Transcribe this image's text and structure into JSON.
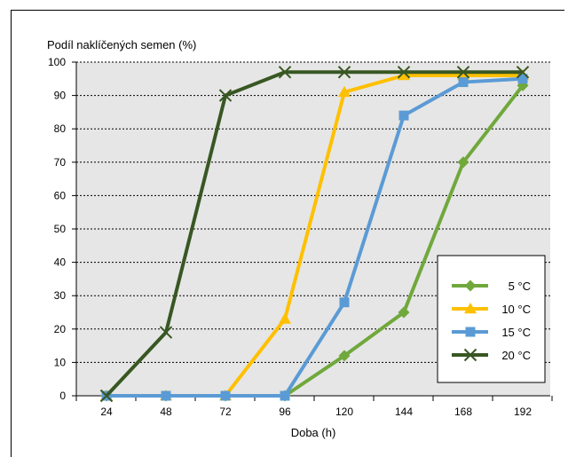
{
  "chart_data": {
    "type": "line",
    "ylabel": "Podíl naklíčených semen (%)",
    "xlabel": "Doba (h)",
    "x": [
      24,
      48,
      72,
      96,
      120,
      144,
      168,
      192
    ],
    "ylim": [
      0,
      100
    ],
    "yticks": [
      0,
      10,
      20,
      30,
      40,
      50,
      60,
      70,
      80,
      90,
      100
    ],
    "grid": "horizontal dashed",
    "legend_position": "lower-right",
    "series": [
      {
        "name": "5 °C",
        "color": "#70a83c",
        "marker": "diamond",
        "values": [
          0,
          0,
          0,
          0,
          12,
          25,
          70,
          93
        ]
      },
      {
        "name": "10 °C",
        "color": "#ffc000",
        "marker": "triangle",
        "values": [
          0,
          0,
          0,
          23,
          91,
          96,
          96,
          96
        ]
      },
      {
        "name": "15 °C",
        "color": "#5b9bd5",
        "marker": "square",
        "values": [
          0,
          0,
          0,
          0,
          28,
          84,
          94,
          95
        ]
      },
      {
        "name": "20 °C",
        "color": "#385723",
        "marker": "x",
        "values": [
          0,
          19,
          90,
          97,
          97,
          97,
          97,
          97
        ]
      }
    ]
  }
}
